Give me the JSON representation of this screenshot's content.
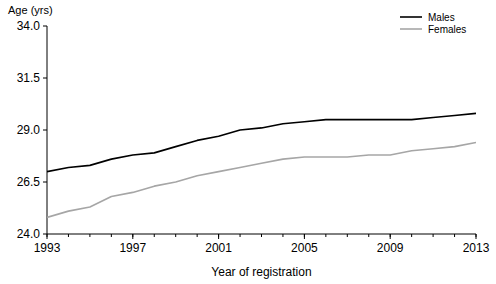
{
  "chart_data": {
    "type": "line",
    "y_label": "Age (yrs)",
    "x_label": "Year of registration",
    "x": [
      1993,
      1994,
      1995,
      1996,
      1997,
      1998,
      1999,
      2000,
      2001,
      2002,
      2003,
      2004,
      2005,
      2006,
      2007,
      2008,
      2009,
      2010,
      2011,
      2012,
      2013
    ],
    "series": [
      {
        "name": "Males",
        "color": "#000000",
        "values": [
          27.0,
          27.2,
          27.3,
          27.6,
          27.8,
          27.9,
          28.2,
          28.5,
          28.7,
          29.0,
          29.1,
          29.3,
          29.4,
          29.5,
          29.5,
          29.5,
          29.5,
          29.5,
          29.6,
          29.7,
          29.8
        ]
      },
      {
        "name": "Females",
        "color": "#a6a6a6",
        "values": [
          24.8,
          25.1,
          25.3,
          25.8,
          26.0,
          26.3,
          26.5,
          26.8,
          27.0,
          27.2,
          27.4,
          27.6,
          27.7,
          27.7,
          27.7,
          27.8,
          27.8,
          28.0,
          28.1,
          28.2,
          28.4
        ]
      }
    ],
    "xlim": [
      1993,
      2013
    ],
    "xticks": [
      1993,
      1997,
      2001,
      2005,
      2009,
      2013
    ],
    "ylim": [
      24,
      34
    ],
    "yticks": [
      {
        "value": 24,
        "label": "24.0"
      },
      26.5,
      {
        "value": 29,
        "label": "29.0"
      },
      31.5,
      {
        "value": 34,
        "label": "34.0"
      }
    ],
    "grid": false,
    "legend": "upper right"
  }
}
